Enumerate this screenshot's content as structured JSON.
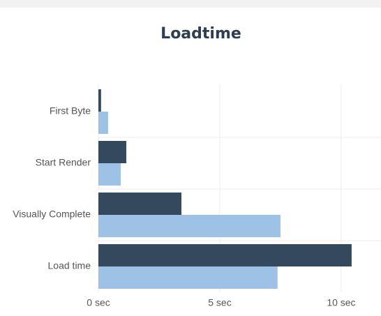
{
  "chart_data": {
    "type": "hbar",
    "title": "Loadtime",
    "categories": [
      "First Byte",
      "Start Render",
      "Visually Complete",
      "Load time"
    ],
    "series": [
      {
        "color": "#34495e",
        "values": [
          0.11,
          1.15,
          3.42,
          10.43
        ]
      },
      {
        "color": "#9dc2e6",
        "values": [
          0.4,
          0.92,
          7.5,
          7.38
        ]
      }
    ],
    "xlim": [
      0,
      11.64
    ],
    "xticks": [
      {
        "value": 0,
        "label": "0 sec"
      },
      {
        "value": 5,
        "label": "5 sec"
      },
      {
        "value": 10,
        "label": "10 sec"
      }
    ],
    "grid": true
  }
}
